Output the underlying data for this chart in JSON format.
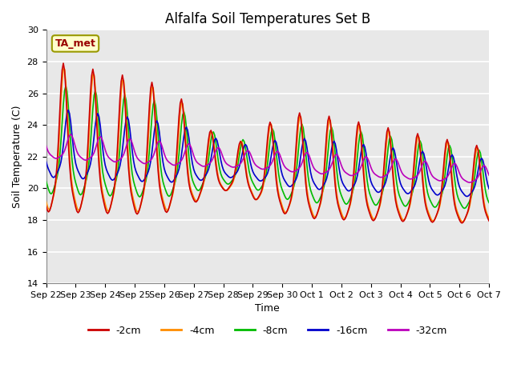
{
  "title": "Alfalfa Soil Temperatures Set B",
  "xlabel": "Time",
  "ylabel": "Soil Temperature (C)",
  "ylim": [
    14,
    30
  ],
  "yticks": [
    14,
    16,
    18,
    20,
    22,
    24,
    26,
    28,
    30
  ],
  "x_labels": [
    "Sep 22",
    "Sep 23",
    "Sep 24",
    "Sep 25",
    "Sep 26",
    "Sep 27",
    "Sep 28",
    "Sep 29",
    "Sep 30",
    "Oct 1",
    "Oct 2",
    "Oct 3",
    "Oct 4",
    "Oct 5",
    "Oct 6",
    "Oct 7"
  ],
  "legend_labels": [
    "-2cm",
    "-4cm",
    "-8cm",
    "-16cm",
    "-32cm"
  ],
  "legend_colors": [
    "#cc0000",
    "#ff8c00",
    "#00bb00",
    "#0000cc",
    "#bb00bb"
  ],
  "annotation_text": "TA_met",
  "annotation_color": "#990000",
  "background_color": "#e8e8e8",
  "title_fontsize": 12,
  "axis_label_fontsize": 9,
  "tick_fontsize": 8
}
